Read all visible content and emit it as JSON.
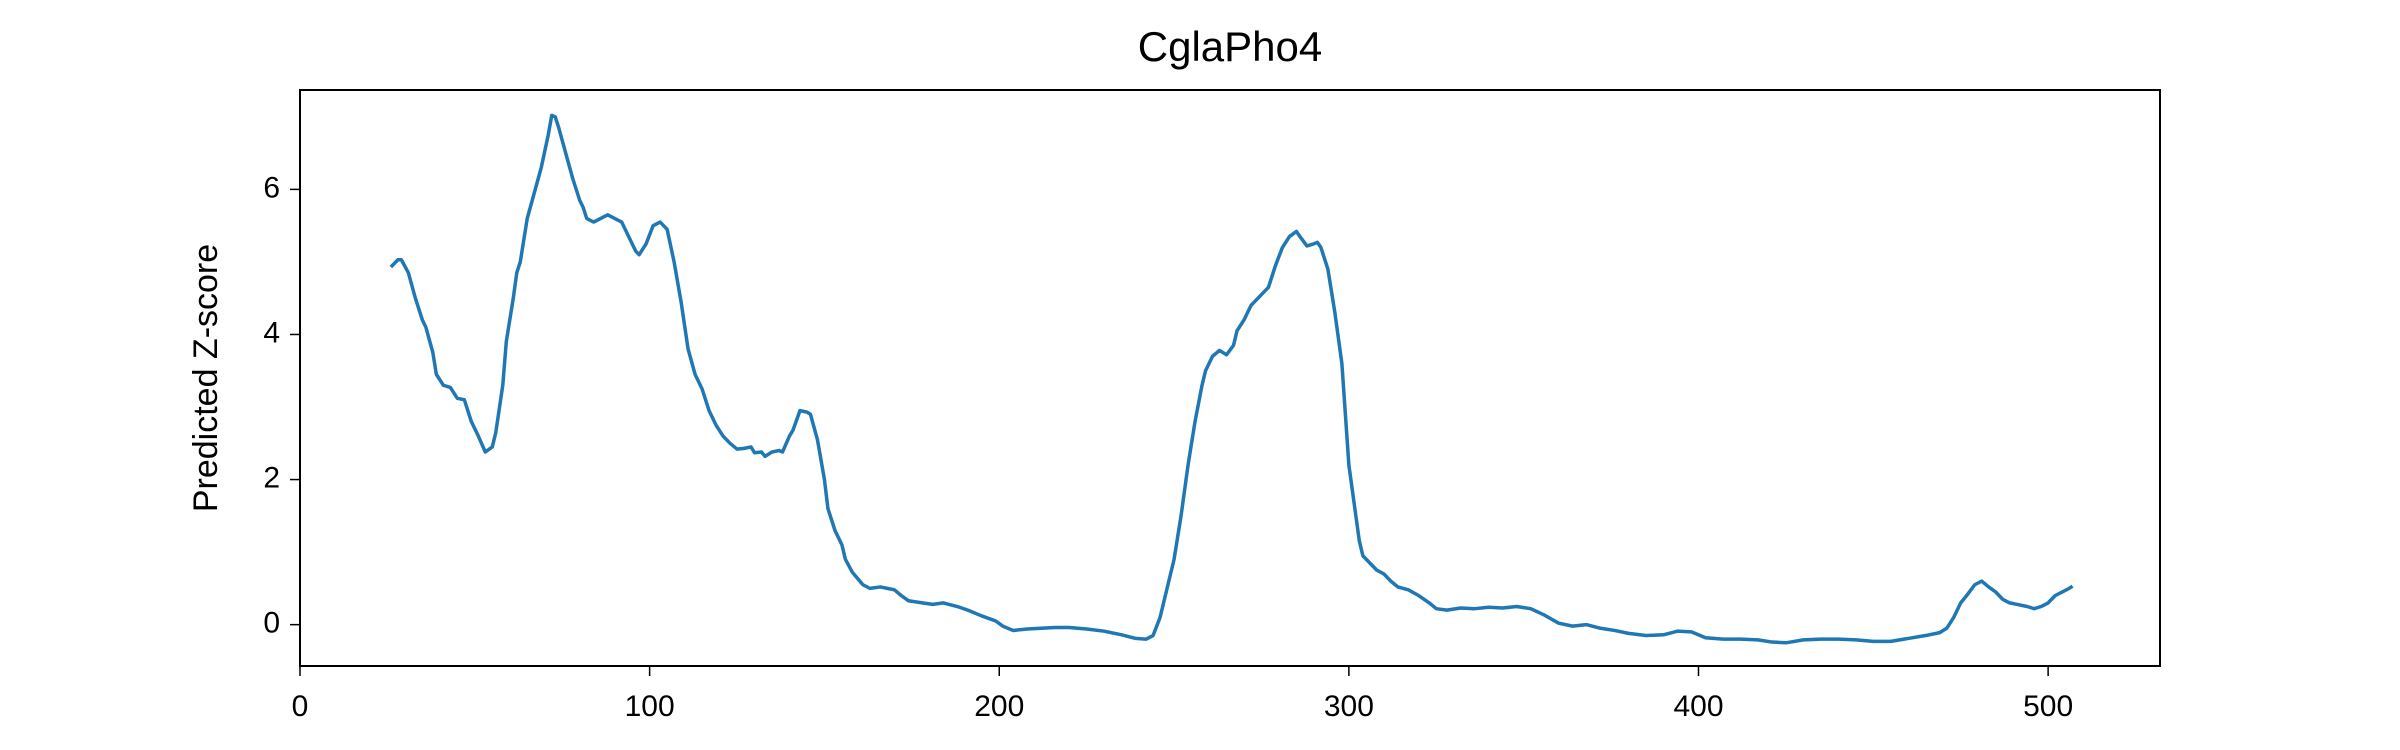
{
  "chart_data": {
    "type": "line",
    "title": "CglaPho4",
    "ylabel": "Predicted Z-score",
    "xlim": [
      0,
      532
    ],
    "ylim": [
      -0.57,
      7.37
    ],
    "xticks": [
      0,
      100,
      200,
      300,
      400,
      500
    ],
    "yticks": [
      0,
      2,
      4,
      6
    ],
    "series": [
      {
        "color": "#1f77b4",
        "x": [
          26,
          28,
          29,
          31,
          33,
          35,
          36,
          38,
          39,
          41,
          43,
          45,
          47,
          48,
          49,
          51,
          53,
          55,
          56,
          58,
          59,
          61,
          62,
          63,
          65,
          67,
          69,
          71,
          72,
          73,
          74,
          76,
          78,
          79,
          80,
          81,
          82,
          84,
          86,
          88,
          90,
          92,
          94,
          96,
          97,
          99,
          101,
          103,
          105,
          107,
          109,
          111,
          113,
          115,
          117,
          119,
          121,
          123,
          125,
          127,
          129,
          130,
          132,
          133,
          135,
          137,
          138,
          140,
          141,
          143,
          145,
          146,
          148,
          150,
          151,
          153,
          155,
          156,
          158,
          161,
          163,
          166,
          170,
          172,
          174,
          178,
          181,
          184,
          188,
          191,
          195,
          199,
          201,
          204,
          208,
          212,
          216,
          220,
          225,
          230,
          235,
          239,
          242,
          244,
          246,
          248,
          250,
          252,
          254,
          256,
          258,
          259,
          261,
          263,
          265,
          267,
          268,
          270,
          272,
          274,
          276,
          277,
          279,
          281,
          283,
          285,
          286,
          288,
          290,
          291,
          292,
          294,
          296,
          298,
          299,
          300,
          302,
          303,
          304,
          306,
          308,
          310,
          312,
          314,
          317,
          320,
          323,
          325,
          328,
          332,
          336,
          340,
          344,
          348,
          352,
          356,
          360,
          364,
          368,
          372,
          376,
          380,
          385,
          390,
          394,
          398,
          402,
          407,
          412,
          417,
          421,
          425,
          430,
          435,
          440,
          445,
          450,
          455,
          460,
          465,
          469,
          471,
          473,
          475,
          477,
          479,
          481,
          483,
          485,
          487,
          489,
          491,
          494,
          496,
          498,
          500,
          502,
          504,
          506,
          507
        ],
        "values": [
          4.93,
          5.03,
          5.03,
          4.85,
          4.5,
          4.2,
          4.1,
          3.75,
          3.45,
          3.3,
          3.27,
          3.12,
          3.1,
          2.95,
          2.8,
          2.6,
          2.38,
          2.45,
          2.65,
          3.3,
          3.9,
          4.5,
          4.85,
          5.0,
          5.6,
          5.95,
          6.3,
          6.75,
          7.02,
          7.0,
          6.85,
          6.5,
          6.15,
          6.0,
          5.85,
          5.75,
          5.6,
          5.55,
          5.6,
          5.65,
          5.6,
          5.55,
          5.35,
          5.15,
          5.1,
          5.25,
          5.5,
          5.55,
          5.45,
          5.0,
          4.45,
          3.8,
          3.45,
          3.25,
          2.95,
          2.75,
          2.6,
          2.5,
          2.42,
          2.43,
          2.45,
          2.37,
          2.38,
          2.32,
          2.38,
          2.4,
          2.38,
          2.6,
          2.68,
          2.95,
          2.93,
          2.9,
          2.55,
          2.0,
          1.6,
          1.3,
          1.1,
          0.9,
          0.72,
          0.55,
          0.5,
          0.52,
          0.48,
          0.4,
          0.33,
          0.3,
          0.28,
          0.3,
          0.25,
          0.2,
          0.12,
          0.05,
          -0.02,
          -0.08,
          -0.06,
          -0.05,
          -0.04,
          -0.04,
          -0.06,
          -0.09,
          -0.14,
          -0.19,
          -0.2,
          -0.15,
          0.1,
          0.5,
          0.9,
          1.5,
          2.2,
          2.8,
          3.3,
          3.5,
          3.7,
          3.78,
          3.72,
          3.85,
          4.05,
          4.2,
          4.4,
          4.5,
          4.6,
          4.65,
          4.95,
          5.2,
          5.35,
          5.42,
          5.35,
          5.22,
          5.25,
          5.27,
          5.2,
          4.9,
          4.3,
          3.6,
          2.9,
          2.2,
          1.5,
          1.15,
          0.95,
          0.85,
          0.75,
          0.7,
          0.6,
          0.52,
          0.48,
          0.4,
          0.3,
          0.22,
          0.2,
          0.23,
          0.22,
          0.24,
          0.23,
          0.25,
          0.22,
          0.13,
          0.02,
          -0.02,
          0.0,
          -0.05,
          -0.08,
          -0.12,
          -0.15,
          -0.14,
          -0.09,
          -0.1,
          -0.18,
          -0.2,
          -0.2,
          -0.21,
          -0.24,
          -0.25,
          -0.21,
          -0.2,
          -0.2,
          -0.21,
          -0.23,
          -0.23,
          -0.19,
          -0.15,
          -0.11,
          -0.05,
          0.1,
          0.3,
          0.42,
          0.55,
          0.6,
          0.52,
          0.45,
          0.35,
          0.3,
          0.28,
          0.25,
          0.22,
          0.25,
          0.3,
          0.4,
          0.45,
          0.5,
          0.53
        ]
      }
    ]
  }
}
